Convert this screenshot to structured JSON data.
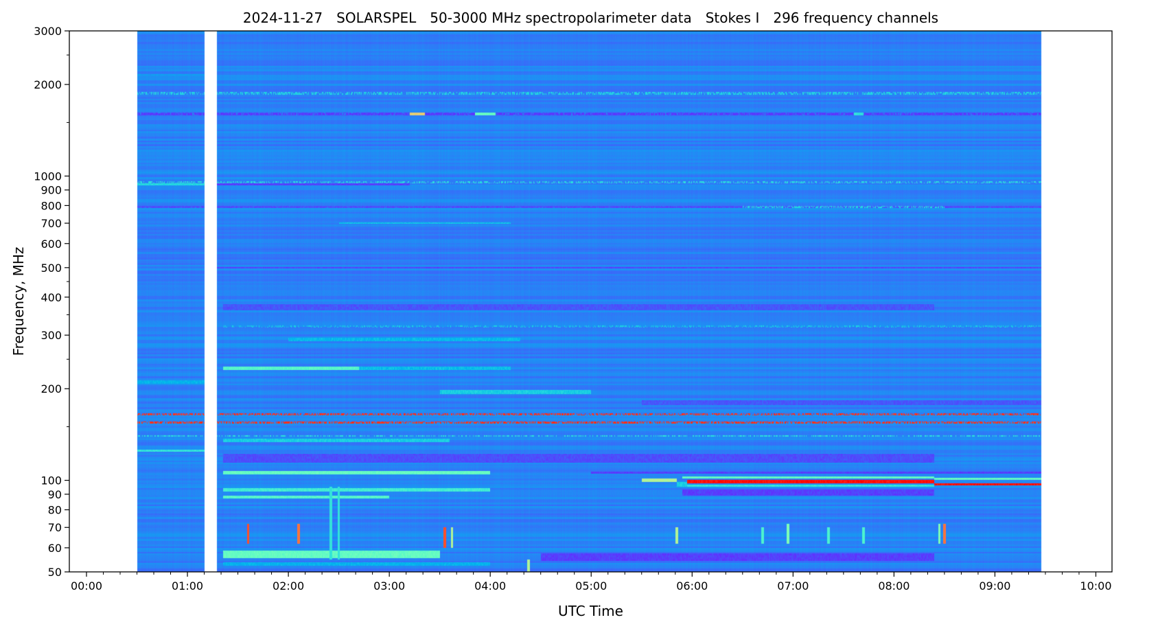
{
  "chart_data": {
    "type": "heatmap",
    "title": {
      "date": "2024-11-27",
      "instrument": "SOLARSPEL",
      "description": "50-3000 MHz spectropolarimeter data",
      "stokes": "Stokes I",
      "channels": "296 frequency channels"
    },
    "xlabel": "UTC Time",
    "ylabel": "Frequency, MHz",
    "yscale": "log",
    "colormap": "rainbow",
    "xlim_hours": [
      -0.17,
      10.16
    ],
    "ylim_mhz": [
      50,
      3000
    ],
    "x_ticks": [
      {
        "hour": 0,
        "label": "00:00"
      },
      {
        "hour": 1,
        "label": "01:00"
      },
      {
        "hour": 2,
        "label": "02:00"
      },
      {
        "hour": 3,
        "label": "03:00"
      },
      {
        "hour": 4,
        "label": "04:00"
      },
      {
        "hour": 5,
        "label": "05:00"
      },
      {
        "hour": 6,
        "label": "06:00"
      },
      {
        "hour": 7,
        "label": "07:00"
      },
      {
        "hour": 8,
        "label": "08:00"
      },
      {
        "hour": 9,
        "label": "09:00"
      },
      {
        "hour": 10,
        "label": "10:00"
      }
    ],
    "x_minor_step_minutes": 10,
    "y_ticks": [
      {
        "mhz": 50,
        "label": "50"
      },
      {
        "mhz": 60,
        "label": "60"
      },
      {
        "mhz": 70,
        "label": "70"
      },
      {
        "mhz": 80,
        "label": "80"
      },
      {
        "mhz": 90,
        "label": "90"
      },
      {
        "mhz": 100,
        "label": "100"
      },
      {
        "mhz": 200,
        "label": "200"
      },
      {
        "mhz": 300,
        "label": "300"
      },
      {
        "mhz": 400,
        "label": "400"
      },
      {
        "mhz": 500,
        "label": "500"
      },
      {
        "mhz": 600,
        "label": "600"
      },
      {
        "mhz": 700,
        "label": "700"
      },
      {
        "mhz": 800,
        "label": "800"
      },
      {
        "mhz": 900,
        "label": "900"
      },
      {
        "mhz": 1000,
        "label": "1000"
      },
      {
        "mhz": 2000,
        "label": "2000"
      },
      {
        "mhz": 3000,
        "label": "3000"
      }
    ],
    "y_minor_ticks": [
      150,
      250,
      350,
      450,
      1500,
      2500
    ],
    "num_channels": 296,
    "data_segments_hours": [
      [
        0.5,
        1.17
      ],
      [
        1.29,
        9.46
      ]
    ],
    "background_level": 0.17,
    "bands": [
      {
        "f": 2150,
        "t": [
          0.5,
          1.17
        ],
        "v": 0.22,
        "w": 0.003,
        "p": 1
      },
      {
        "f": 1870,
        "t": [
          0.5,
          9.46
        ],
        "v": 0.33,
        "w": 0.004,
        "p": 0.5
      },
      {
        "f": 1600,
        "t": [
          0.5,
          9.46
        ],
        "v": 0.08,
        "w": 0.004,
        "p": 0.85
      },
      {
        "f": 1600,
        "t": [
          3.2,
          3.35
        ],
        "v": 0.7,
        "w": 0.004,
        "p": 1
      },
      {
        "f": 1600,
        "t": [
          3.85,
          4.05
        ],
        "v": 0.45,
        "w": 0.004,
        "p": 1
      },
      {
        "f": 1600,
        "t": [
          7.6,
          7.7
        ],
        "v": 0.35,
        "w": 0.004,
        "p": 1
      },
      {
        "f": 955,
        "t": [
          0.5,
          9.46
        ],
        "v": 0.35,
        "w": 0.003,
        "p": 0.4
      },
      {
        "f": 940,
        "t": [
          0.5,
          1.17
        ],
        "v": 0.32,
        "w": 0.004,
        "p": 1
      },
      {
        "f": 940,
        "t": [
          1.29,
          3.2
        ],
        "v": 0.08,
        "w": 0.004,
        "p": 1
      },
      {
        "f": 790,
        "t": [
          0.5,
          9.46
        ],
        "v": 0.1,
        "w": 0.003,
        "p": 0.9
      },
      {
        "f": 790,
        "t": [
          6.5,
          8.5
        ],
        "v": 0.33,
        "w": 0.003,
        "p": 0.5
      },
      {
        "f": 700,
        "t": [
          2.5,
          4.2
        ],
        "v": 0.28,
        "w": 0.003,
        "p": 1
      },
      {
        "f": 500,
        "t": [
          1.29,
          9.46
        ],
        "v": 0.09,
        "w": 0.003,
        "p": 1
      },
      {
        "f": 370,
        "t": [
          1.35,
          8.4
        ],
        "v": 0.11,
        "w": 0.01,
        "p": 1
      },
      {
        "f": 320,
        "t": [
          1.35,
          9.46
        ],
        "v": 0.32,
        "w": 0.003,
        "p": 0.3
      },
      {
        "f": 290,
        "t": [
          2.0,
          4.3
        ],
        "v": 0.26,
        "w": 0.005,
        "p": 1
      },
      {
        "f": 233,
        "t": [
          1.35,
          2.7
        ],
        "v": 0.42,
        "w": 0.006,
        "p": 1
      },
      {
        "f": 233,
        "t": [
          2.7,
          4.2
        ],
        "v": 0.27,
        "w": 0.006,
        "p": 1
      },
      {
        "f": 210,
        "t": [
          0.5,
          1.17
        ],
        "v": 0.25,
        "w": 0.006,
        "p": 1
      },
      {
        "f": 195,
        "t": [
          3.5,
          5.0
        ],
        "v": 0.3,
        "w": 0.006,
        "p": 1
      },
      {
        "f": 180,
        "t": [
          5.5,
          9.46
        ],
        "v": 0.11,
        "w": 0.008,
        "p": 1
      },
      {
        "f": 165,
        "t": [
          0.5,
          9.46
        ],
        "v": 0.95,
        "w": 0.003,
        "p": 0.55
      },
      {
        "f": 155,
        "t": [
          0.5,
          9.46
        ],
        "v": 0.95,
        "w": 0.003,
        "p": 0.6
      },
      {
        "f": 140,
        "t": [
          0.5,
          9.46
        ],
        "v": 0.35,
        "w": 0.003,
        "p": 0.45
      },
      {
        "f": 135,
        "t": [
          1.35,
          3.6
        ],
        "v": 0.3,
        "w": 0.006,
        "p": 1
      },
      {
        "f": 125,
        "t": [
          0.5,
          1.17
        ],
        "v": 0.35,
        "w": 0.004,
        "p": 1
      },
      {
        "f": 118,
        "t": [
          1.35,
          8.4
        ],
        "v": 0.1,
        "w": 0.015,
        "p": 1
      },
      {
        "f": 106,
        "t": [
          1.35,
          4.0
        ],
        "v": 0.45,
        "w": 0.005,
        "p": 1
      },
      {
        "f": 106,
        "t": [
          5.0,
          9.46
        ],
        "v": 0.08,
        "w": 0.004,
        "p": 1
      },
      {
        "f": 93,
        "t": [
          1.35,
          4.0
        ],
        "v": 0.38,
        "w": 0.006,
        "p": 1
      },
      {
        "f": 91,
        "t": [
          5.9,
          8.4
        ],
        "v": 0.08,
        "w": 0.01,
        "p": 1
      },
      {
        "f": 88,
        "t": [
          1.35,
          3.0
        ],
        "v": 0.42,
        "w": 0.004,
        "p": 1
      },
      {
        "f": 102,
        "t": [
          5.9,
          8.4
        ],
        "v": 0.45,
        "w": 0.003,
        "p": 1
      },
      {
        "f": 96,
        "t": [
          5.9,
          8.4
        ],
        "v": 0.35,
        "w": 0.003,
        "p": 1
      },
      {
        "f": 100,
        "t": [
          5.5,
          5.85
        ],
        "v": 0.6,
        "w": 0.006,
        "p": 1
      },
      {
        "f": 99,
        "t": [
          5.95,
          8.4
        ],
        "v": 0.98,
        "w": 0.006,
        "p": 1
      },
      {
        "f": 97,
        "t": [
          5.85,
          5.95
        ],
        "v": 0.3,
        "w": 0.008,
        "p": 1
      },
      {
        "f": 101,
        "t": [
          8.4,
          9.46
        ],
        "v": 0.45,
        "w": 0.003,
        "p": 1
      },
      {
        "f": 97,
        "t": [
          8.4,
          9.46
        ],
        "v": 0.98,
        "w": 0.003,
        "p": 1
      },
      {
        "f": 57,
        "t": [
          1.35,
          3.5
        ],
        "v": 0.45,
        "w": 0.012,
        "p": 1
      },
      {
        "f": 56,
        "t": [
          4.5,
          8.4
        ],
        "v": 0.08,
        "w": 0.012,
        "p": 1
      },
      {
        "f": 53,
        "t": [
          1.35,
          4.0
        ],
        "v": 0.25,
        "w": 0.006,
        "p": 1
      }
    ],
    "spikes": [
      {
        "t": 1.6,
        "f": [
          62,
          72
        ],
        "v": 0.9
      },
      {
        "t": 2.1,
        "f": [
          62,
          72
        ],
        "v": 0.85
      },
      {
        "t": 2.42,
        "f": [
          55,
          95
        ],
        "v": 0.35
      },
      {
        "t": 2.5,
        "f": [
          55,
          95
        ],
        "v": 0.35
      },
      {
        "t": 3.55,
        "f": [
          60,
          70
        ],
        "v": 0.9
      },
      {
        "t": 3.62,
        "f": [
          60,
          70
        ],
        "v": 0.6
      },
      {
        "t": 4.38,
        "f": [
          50,
          55
        ],
        "v": 0.6
      },
      {
        "t": 5.85,
        "f": [
          62,
          70
        ],
        "v": 0.6
      },
      {
        "t": 6.7,
        "f": [
          62,
          70
        ],
        "v": 0.4
      },
      {
        "t": 6.95,
        "f": [
          62,
          72
        ],
        "v": 0.5
      },
      {
        "t": 7.35,
        "f": [
          62,
          70
        ],
        "v": 0.4
      },
      {
        "t": 7.7,
        "f": [
          62,
          70
        ],
        "v": 0.4
      },
      {
        "t": 8.45,
        "f": [
          62,
          72
        ],
        "v": 0.5
      },
      {
        "t": 8.5,
        "f": [
          62,
          72
        ],
        "v": 0.85
      }
    ]
  }
}
